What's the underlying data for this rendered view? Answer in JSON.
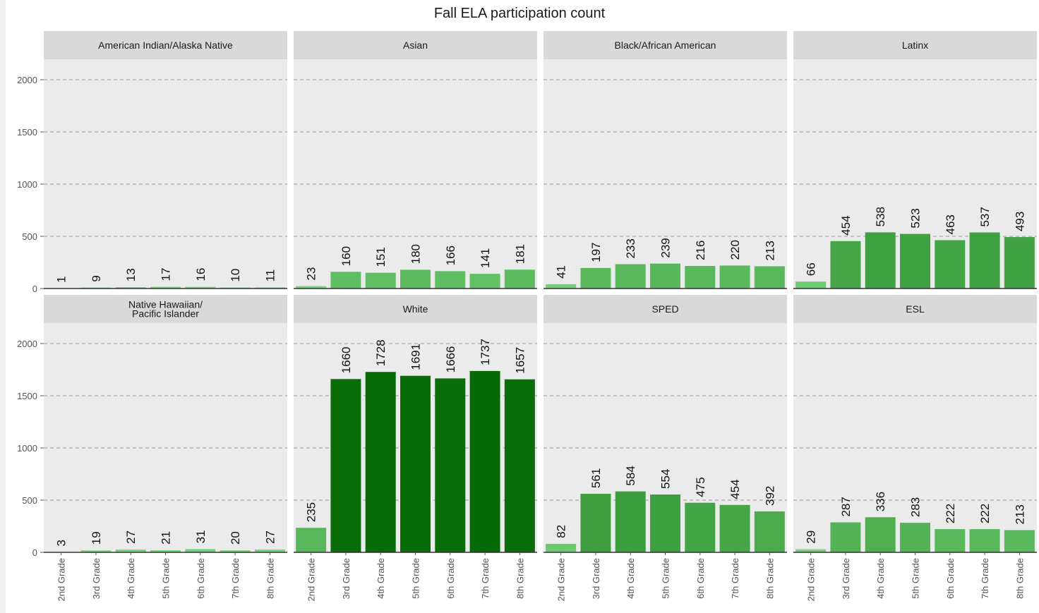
{
  "chart_data": {
    "type": "bar",
    "title": "Fall ELA participation count",
    "xlabel": "",
    "ylabel": "",
    "ylim": [
      0,
      2200
    ],
    "y_ticks": [
      0,
      500,
      1000,
      1500,
      2000
    ],
    "y_tick_labels": [
      "0",
      "500",
      "1000",
      "1500",
      "2000"
    ],
    "grid": "dashed horizontal",
    "categories": [
      "2nd Grade",
      "3rd Grade",
      "4th Grade",
      "5th Grade",
      "6th Grade",
      "7th Grade",
      "8th Grade"
    ],
    "colors": {
      "panel_bg": "#ebebeb",
      "strip_bg": "#d9d9d9",
      "grid": "#a8a8a8",
      "fill_scale_low": "#86e38a",
      "fill_scale_high": "#006400"
    },
    "panels": [
      {
        "name": "American Indian/Alaska Native",
        "values": [
          1,
          9,
          13,
          17,
          16,
          10,
          11
        ]
      },
      {
        "name": "Asian",
        "values": [
          23,
          160,
          151,
          180,
          166,
          141,
          181
        ]
      },
      {
        "name": "Black/African American",
        "values": [
          41,
          197,
          233,
          239,
          216,
          220,
          213
        ]
      },
      {
        "name": "Latinx",
        "values": [
          66,
          454,
          538,
          523,
          463,
          537,
          493
        ]
      },
      {
        "name": "Native Hawaiian/\nPacific Islander",
        "values": [
          3,
          19,
          27,
          21,
          31,
          20,
          27
        ]
      },
      {
        "name": "White",
        "values": [
          235,
          1660,
          1728,
          1691,
          1666,
          1737,
          1657
        ]
      },
      {
        "name": "SPED",
        "values": [
          82,
          561,
          584,
          554,
          475,
          454,
          392
        ]
      },
      {
        "name": "ESL",
        "values": [
          29,
          287,
          336,
          283,
          222,
          222,
          213
        ]
      }
    ]
  }
}
